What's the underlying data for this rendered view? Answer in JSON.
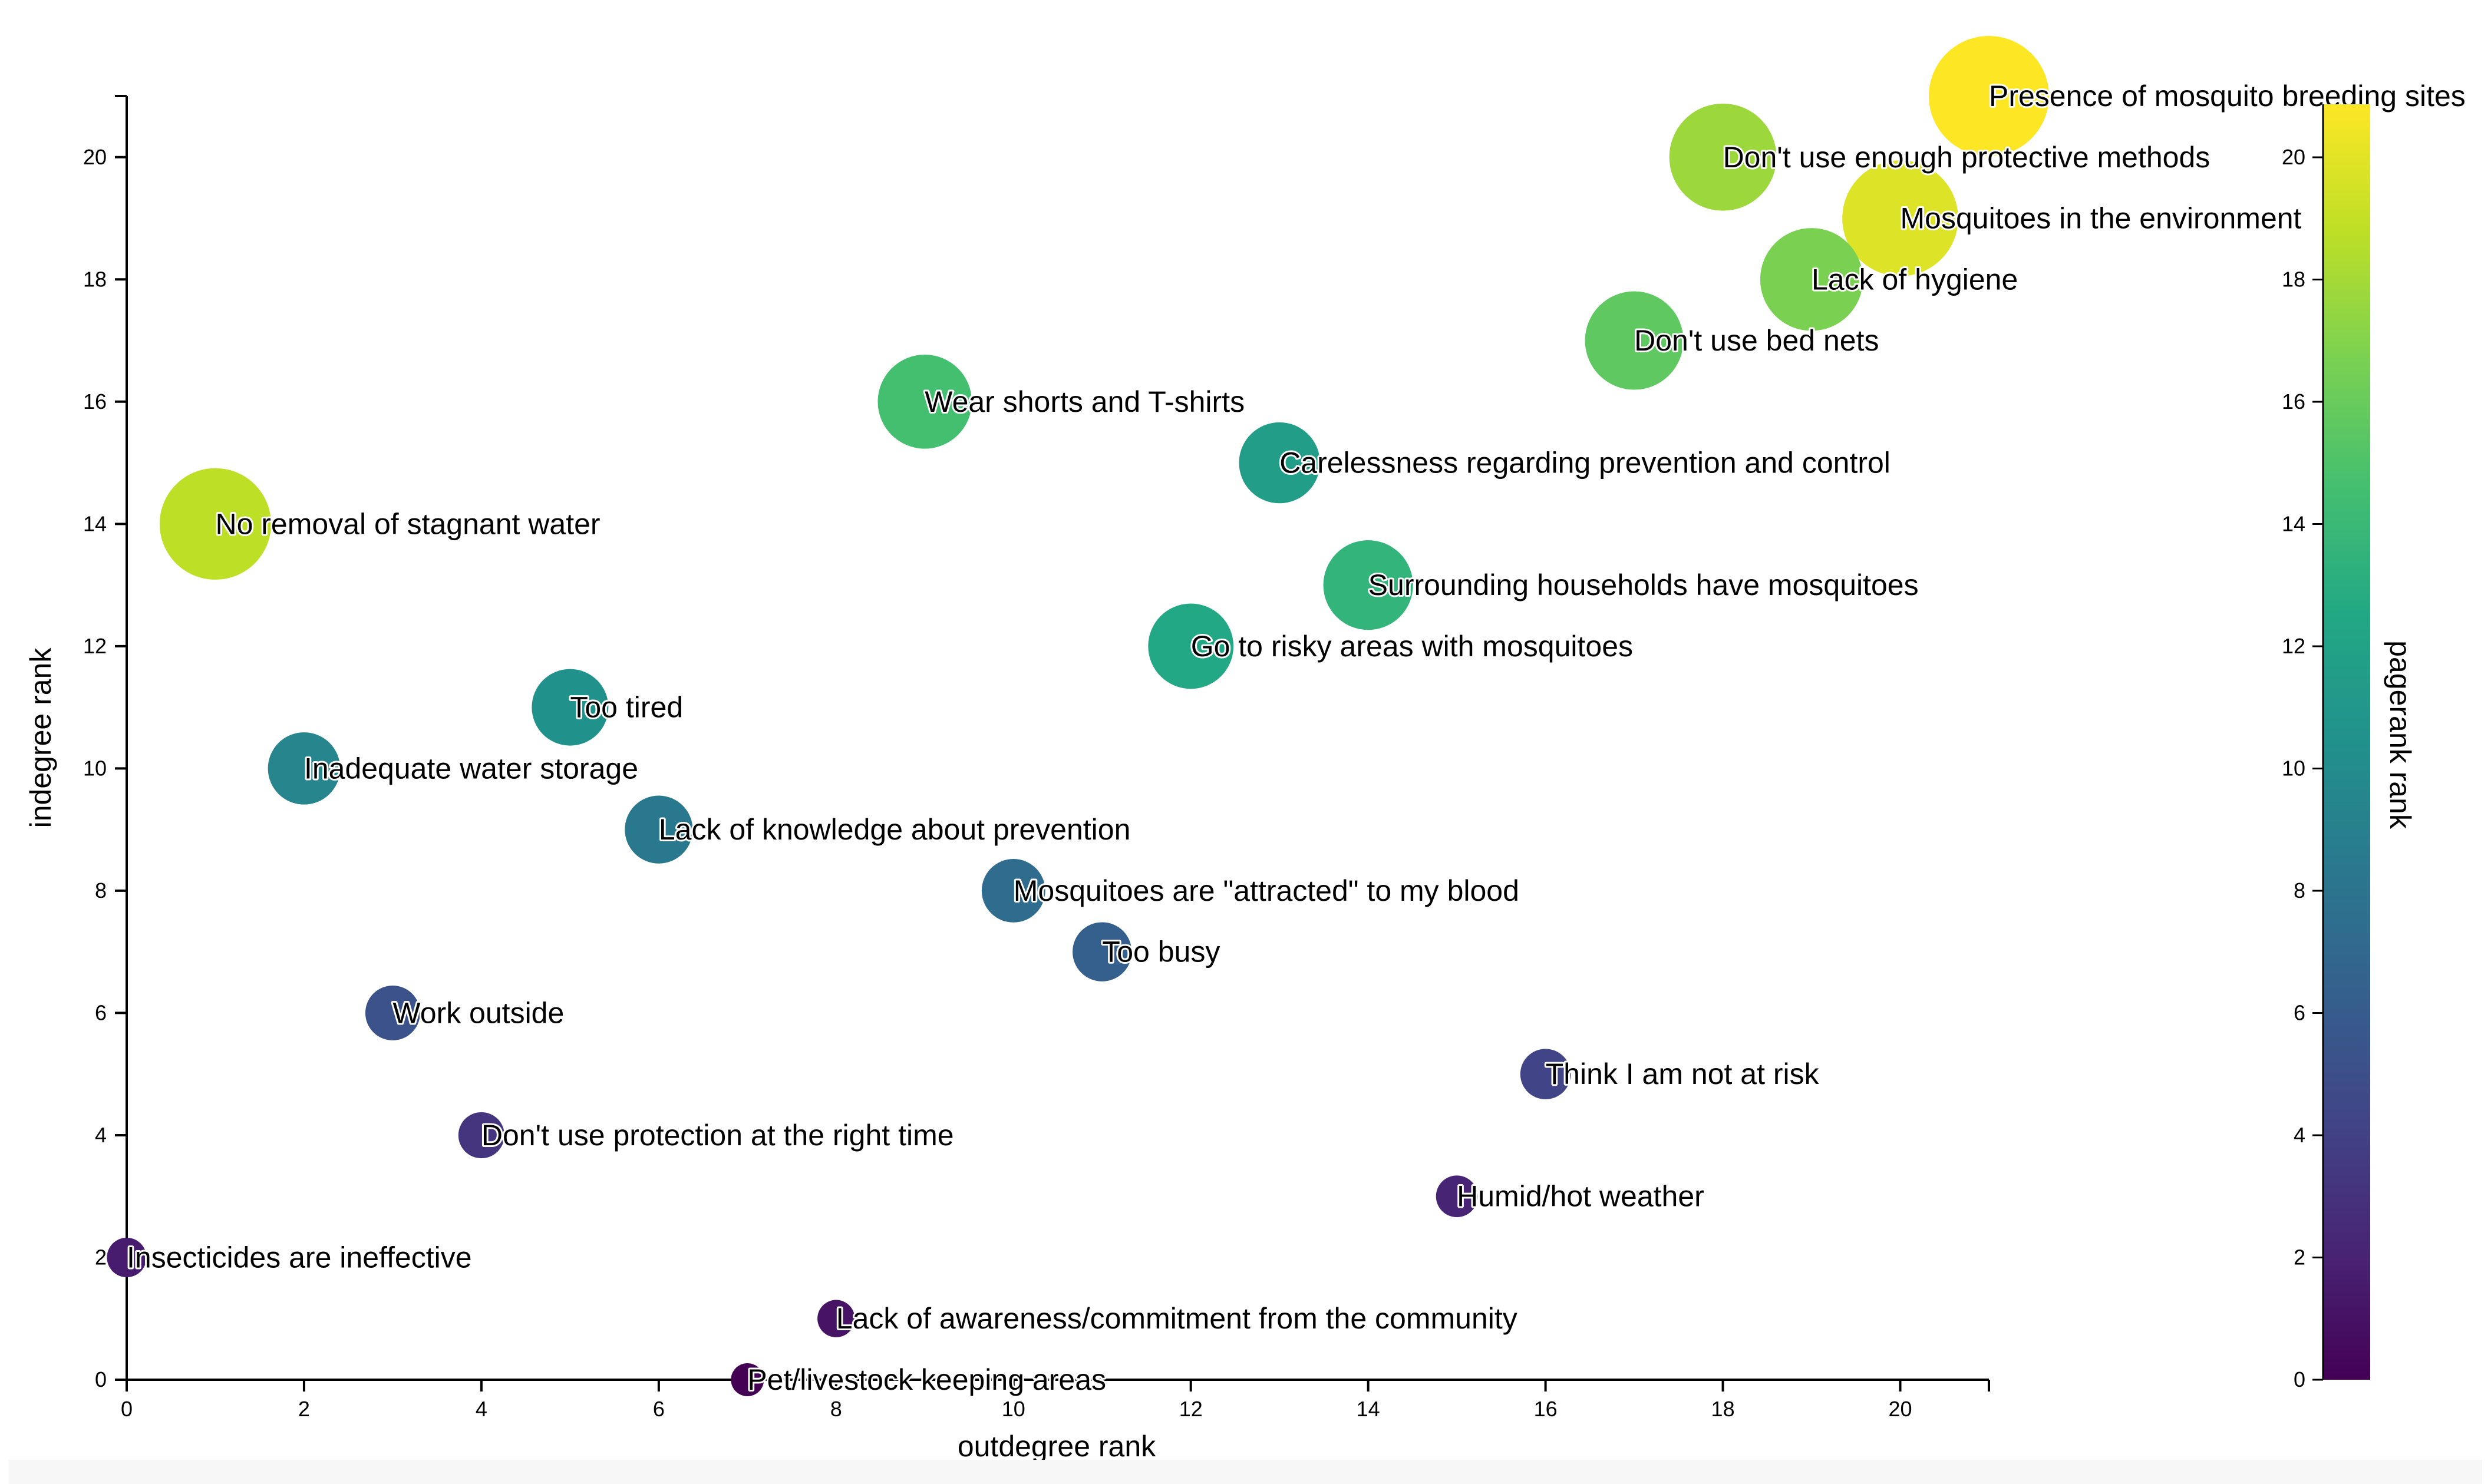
{
  "chart_data": {
    "type": "scatter",
    "title": "",
    "xlabel": "outdegree rank",
    "ylabel": "indegree rank",
    "colorbar_label": "pagerank rank",
    "xlim": [
      0,
      21
    ],
    "ylim": [
      0,
      21
    ],
    "color_lim": [
      0,
      20
    ],
    "x_ticks": [
      0,
      2,
      4,
      6,
      8,
      10,
      12,
      14,
      16,
      18,
      20
    ],
    "y_ticks": [
      0,
      2,
      4,
      6,
      8,
      10,
      12,
      14,
      16,
      18,
      20
    ],
    "color_ticks": [
      0,
      2,
      4,
      6,
      8,
      10,
      12,
      14,
      16,
      18,
      20
    ],
    "colormap": "viridis",
    "grid": false,
    "legend": "colorbar-right",
    "points": [
      {
        "label": "Presence of mosquito breeding sites",
        "x": 21,
        "y": 21,
        "pagerank": 20
      },
      {
        "label": "Don't use enough protective methods",
        "x": 18,
        "y": 20,
        "pagerank": 17
      },
      {
        "label": "Mosquitoes in the environment",
        "x": 20,
        "y": 19,
        "pagerank": 19
      },
      {
        "label": "Lack of hygiene",
        "x": 19,
        "y": 18,
        "pagerank": 16
      },
      {
        "label": "Don't use bed nets",
        "x": 17,
        "y": 17,
        "pagerank": 15
      },
      {
        "label": "Wear shorts and T-shirts",
        "x": 9,
        "y": 16,
        "pagerank": 14
      },
      {
        "label": "Carelessness regarding prevention and control",
        "x": 13,
        "y": 15,
        "pagerank": 11
      },
      {
        "label": "No removal of stagnant water",
        "x": 1,
        "y": 14,
        "pagerank": 18
      },
      {
        "label": "Surrounding households have mosquitoes",
        "x": 14,
        "y": 13,
        "pagerank": 13
      },
      {
        "label": "Go to risky areas with mosquitoes",
        "x": 12,
        "y": 12,
        "pagerank": 12
      },
      {
        "label": "Too tired",
        "x": 5,
        "y": 11,
        "pagerank": 10
      },
      {
        "label": "Inadequate water storage",
        "x": 2,
        "y": 10,
        "pagerank": 9
      },
      {
        "label": "Lack of knowledge about prevention",
        "x": 6,
        "y": 9,
        "pagerank": 8
      },
      {
        "label": "Mosquitoes are \"attracted\" to my blood",
        "x": 10,
        "y": 8,
        "pagerank": 7
      },
      {
        "label": "Too busy",
        "x": 11,
        "y": 7,
        "pagerank": 6
      },
      {
        "label": "Work outside",
        "x": 3,
        "y": 6,
        "pagerank": 5
      },
      {
        "label": "Think I am not at risk",
        "x": 16,
        "y": 5,
        "pagerank": 4
      },
      {
        "label": "Don't use protection at the right time",
        "x": 4,
        "y": 4,
        "pagerank": 3
      },
      {
        "label": "Humid/hot weather",
        "x": 15,
        "y": 3,
        "pagerank": 2
      },
      {
        "label": "Insecticides are ineffective",
        "x": 0,
        "y": 2,
        "pagerank": 1.5
      },
      {
        "label": "Lack of awareness/commitment from the community",
        "x": 8,
        "y": 1,
        "pagerank": 1
      },
      {
        "label": "Pet/livestock keeping areas",
        "x": 7,
        "y": 0,
        "pagerank": 0
      }
    ]
  }
}
